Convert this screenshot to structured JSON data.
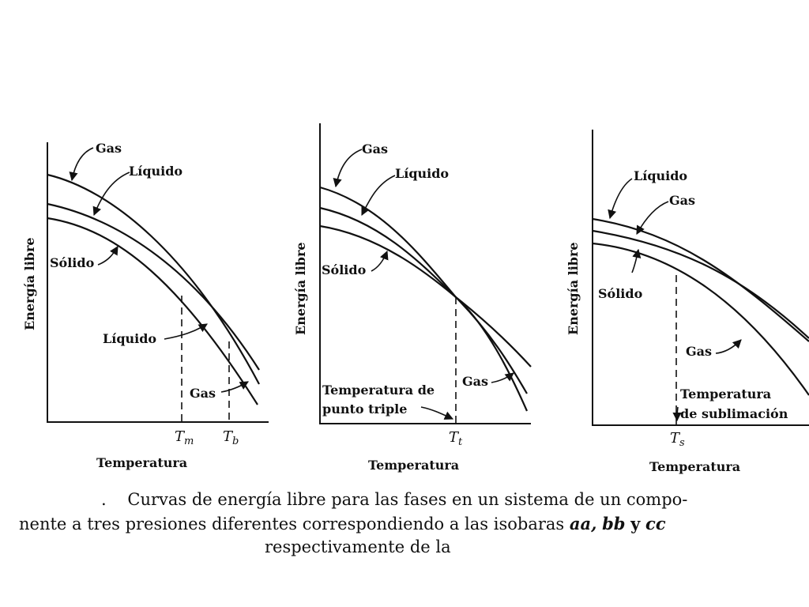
{
  "labels": {
    "gas": "Gas",
    "liquido": "Líquido",
    "solido": "Sólido",
    "energia": "Energía libre",
    "temperatura": "Temperatura",
    "triple_line_1": "Temperatura de",
    "triple_line_2": "punto triple",
    "subl_line_1": "Temperatura",
    "subl_line_2": "de sublimación"
  },
  "ticks": {
    "tm": "T",
    "tm_sub": "m",
    "tb": "T",
    "tb_sub": "b",
    "tt": "T",
    "tt_sub": "t",
    "ts": "T",
    "ts_sub": "s"
  },
  "caption": {
    "line1_prefix": ".",
    "line1": "Curvas de energía libre para las fases en un sistema de un compo-",
    "line2_start": "nente a tres presiones diferentes correspondiendo a las isobaras",
    "line2_aa": "aa,",
    "line2_bb": "bb",
    "line2_y": "y",
    "line2_cc": "cc",
    "line3": "respectivamente de la"
  }
}
